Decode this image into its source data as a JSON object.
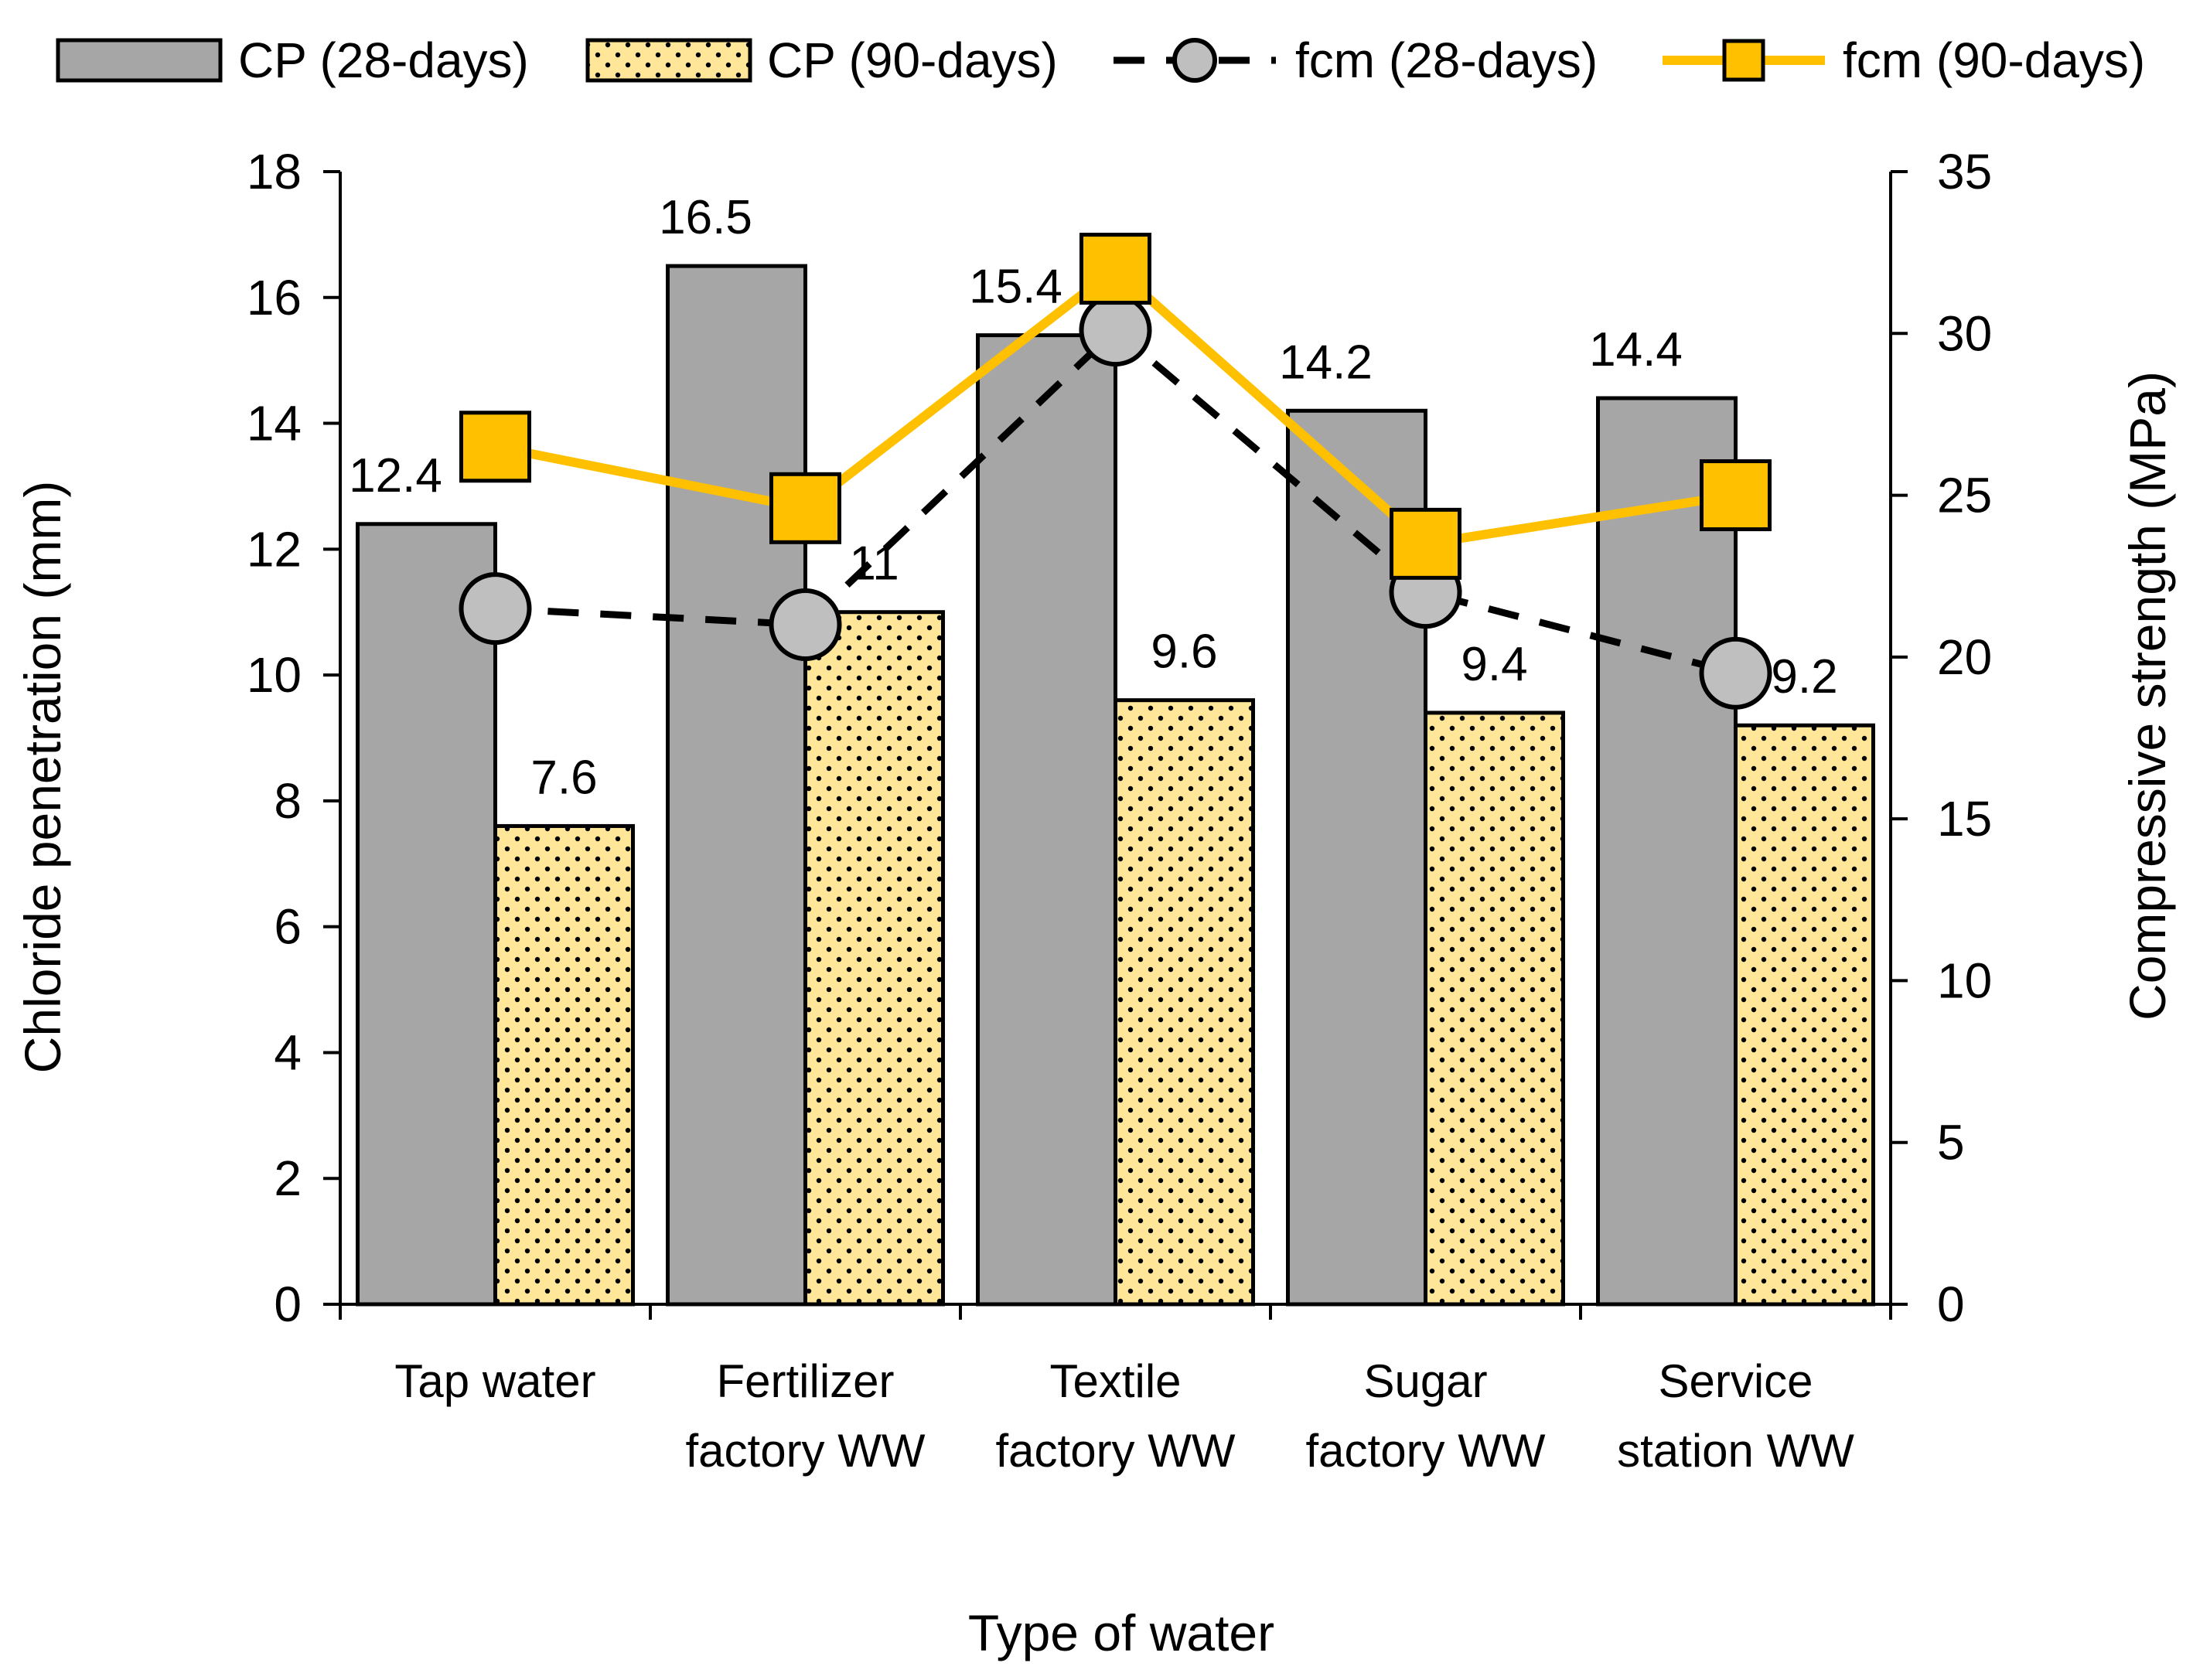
{
  "chart_data": {
    "type": "bar",
    "title": "",
    "xlabel": "Type of water",
    "ylabel": "Chloride penetration (mm)",
    "y2label": "Compressive strength (MPa)",
    "ylim": [
      0,
      18
    ],
    "y2lim": [
      0,
      35
    ],
    "yticks": [
      0,
      2,
      4,
      6,
      8,
      10,
      12,
      14,
      16,
      18
    ],
    "y2ticks": [
      0,
      5,
      10,
      15,
      20,
      25,
      30,
      35
    ],
    "categories": [
      [
        "Tap water"
      ],
      [
        "Fertilizer",
        "factory WW"
      ],
      [
        "Textile",
        "factory WW"
      ],
      [
        "Sugar",
        "factory WW"
      ],
      [
        "Service",
        "station WW"
      ]
    ],
    "series": [
      {
        "name": "CP (28-days)",
        "kind": "bar",
        "axis": "left",
        "values": [
          12.4,
          16.5,
          15.4,
          14.2,
          14.4
        ],
        "labels": [
          "12.4",
          "16.5",
          "15.4",
          "14.2",
          "14.4"
        ],
        "color": "#a6a6a6"
      },
      {
        "name": "CP (90-days)",
        "kind": "bar",
        "axis": "left",
        "values": [
          7.6,
          11,
          9.6,
          9.4,
          9.2
        ],
        "labels": [
          "7.6",
          "11",
          "9.6",
          "9.4",
          "9.2"
        ],
        "color": "#ffe699",
        "pattern": "dots"
      },
      {
        "name": "fcm (28-days)",
        "kind": "line",
        "axis": "right",
        "values": [
          21.5,
          21.0,
          30.1,
          22.0,
          19.5
        ],
        "color": "#000000",
        "marker": "circle",
        "marker_color": "#bfbfbf",
        "dash": true
      },
      {
        "name": "fcm (90-days)",
        "kind": "line",
        "axis": "right",
        "values": [
          26.5,
          24.6,
          32.0,
          23.5,
          25.0
        ],
        "color": "#ffc000",
        "marker": "square",
        "marker_color": "#ffc000",
        "dash": false
      }
    ],
    "legend_position": "top"
  }
}
